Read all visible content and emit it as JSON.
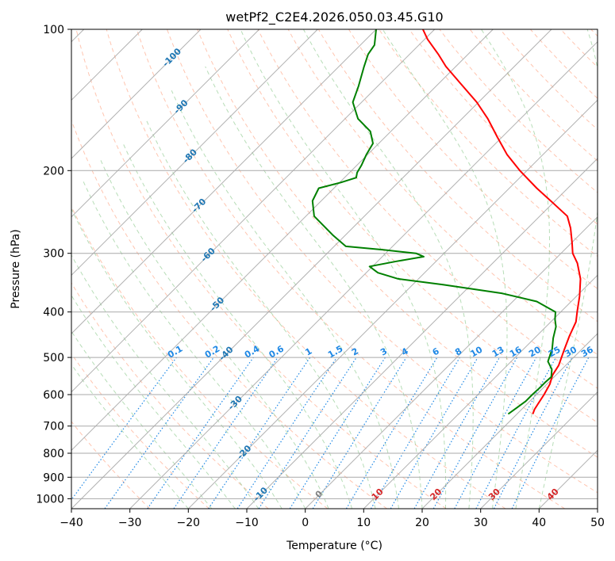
{
  "chart_data": {
    "type": "skew-t",
    "title": "wetPf2_C2E4.2026.050.03.45.G10",
    "xlabel": "Temperature (°C)",
    "ylabel": "Pressure (hPa)",
    "xlim": [
      -40,
      50
    ],
    "ylim_hpa": [
      1050,
      100
    ],
    "x_ticks": [
      -40,
      -30,
      -20,
      -10,
      0,
      10,
      20,
      30,
      40,
      50
    ],
    "x_tick_labels": [
      "−40",
      "−30",
      "−20",
      "−10",
      "0",
      "10",
      "20",
      "30",
      "40",
      "50"
    ],
    "p_ticks": [
      100,
      200,
      300,
      400,
      500,
      600,
      700,
      800,
      900,
      1000
    ],
    "p_tick_labels": [
      "100",
      "200",
      "300",
      "400",
      "500",
      "600",
      "700",
      "800",
      "900",
      "1000"
    ],
    "isotherm_labels": [
      {
        "t": -100,
        "text": "-100"
      },
      {
        "t": -90,
        "text": "-90"
      },
      {
        "t": -80,
        "text": "-80"
      },
      {
        "t": -70,
        "text": "-70"
      },
      {
        "t": -60,
        "text": "-60"
      },
      {
        "t": -50,
        "text": "-50"
      },
      {
        "t": -40,
        "text": "-40"
      },
      {
        "t": -30,
        "text": "-30"
      },
      {
        "t": -20,
        "text": "-20"
      },
      {
        "t": -10,
        "text": "-10"
      },
      {
        "t": 0,
        "text": "0"
      },
      {
        "t": 10,
        "text": "10"
      },
      {
        "t": 20,
        "text": "20"
      },
      {
        "t": 30,
        "text": "30"
      },
      {
        "t": 40,
        "text": "40"
      }
    ],
    "mixing_ratio_labels": [
      "0.1",
      "0.2",
      "0.4",
      "0.6",
      "1",
      "1.5",
      "2",
      "3",
      "4",
      "6",
      "8",
      "10",
      "13",
      "16",
      "20",
      "25",
      "30",
      "36"
    ],
    "grid": true,
    "colors": {
      "temperature": "#ff0000",
      "dewpoint": "#008000",
      "isotherm_label_cold": "#1f77b4",
      "isotherm_label_zero": "#808080",
      "isotherm_label_warm": "#d62728",
      "mixing_ratio": "#1e88e5",
      "dry_adiabat": "#ff7f50",
      "moist_adiabat": "#5fb35f",
      "grid": "#a9a9a9",
      "frame": "#000000"
    },
    "series": [
      {
        "name": "",
        "kind": "temperature",
        "points": [
          {
            "p": 660,
            "t": 22.7
          },
          {
            "p": 645,
            "t": 22.2
          },
          {
            "p": 630,
            "t": 21.9
          },
          {
            "p": 600,
            "t": 21.3
          },
          {
            "p": 570,
            "t": 20.5
          },
          {
            "p": 545,
            "t": 19.4
          },
          {
            "p": 520,
            "t": 18.8
          },
          {
            "p": 480,
            "t": 17.0
          },
          {
            "p": 450,
            "t": 15.6
          },
          {
            "p": 420,
            "t": 14.3
          },
          {
            "p": 400,
            "t": 12.8
          },
          {
            "p": 370,
            "t": 10.5
          },
          {
            "p": 340,
            "t": 7.7
          },
          {
            "p": 315,
            "t": 4.5
          },
          {
            "p": 300,
            "t": 2.0
          },
          {
            "p": 285,
            "t": 0.1
          },
          {
            "p": 265,
            "t": -2.7
          },
          {
            "p": 250,
            "t": -5.3
          },
          {
            "p": 235,
            "t": -9.8
          },
          {
            "p": 218,
            "t": -15.3
          },
          {
            "p": 200,
            "t": -21.2
          },
          {
            "p": 185,
            "t": -26.1
          },
          {
            "p": 170,
            "t": -30.7
          },
          {
            "p": 155,
            "t": -35.6
          },
          {
            "p": 143,
            "t": -40.3
          },
          {
            "p": 130,
            "t": -46.5
          },
          {
            "p": 120,
            "t": -51.7
          },
          {
            "p": 113,
            "t": -55.1
          },
          {
            "p": 105,
            "t": -59.5
          },
          {
            "p": 100,
            "t": -62.0
          }
        ]
      },
      {
        "name": "",
        "kind": "dewpoint",
        "points": [
          {
            "p": 660,
            "t": 18.5
          },
          {
            "p": 640,
            "t": 18.9
          },
          {
            "p": 620,
            "t": 19.3
          },
          {
            "p": 600,
            "t": 19.3
          },
          {
            "p": 580,
            "t": 19.4
          },
          {
            "p": 565,
            "t": 19.4
          },
          {
            "p": 550,
            "t": 19.5
          },
          {
            "p": 530,
            "t": 18.3
          },
          {
            "p": 510,
            "t": 16.3
          },
          {
            "p": 480,
            "t": 14.9
          },
          {
            "p": 455,
            "t": 13.2
          },
          {
            "p": 430,
            "t": 11.7
          },
          {
            "p": 415,
            "t": 10.3
          },
          {
            "p": 400,
            "t": 9.1
          },
          {
            "p": 380,
            "t": 4.1
          },
          {
            "p": 365,
            "t": -3.3
          },
          {
            "p": 350,
            "t": -14.8
          },
          {
            "p": 340,
            "t": -23.5
          },
          {
            "p": 330,
            "t": -28.0
          },
          {
            "p": 320,
            "t": -30.5
          },
          {
            "p": 312,
            "t": -26.8
          },
          {
            "p": 305,
            "t": -22.9
          },
          {
            "p": 300,
            "t": -24.8
          },
          {
            "p": 295,
            "t": -31.0
          },
          {
            "p": 290,
            "t": -38.0
          },
          {
            "p": 275,
            "t": -42.0
          },
          {
            "p": 250,
            "t": -48.6
          },
          {
            "p": 232,
            "t": -51.5
          },
          {
            "p": 218,
            "t": -52.6
          },
          {
            "p": 212,
            "t": -49.8
          },
          {
            "p": 207,
            "t": -48.0
          },
          {
            "p": 202,
            "t": -48.7
          },
          {
            "p": 195,
            "t": -49.2
          },
          {
            "p": 185,
            "t": -50.2
          },
          {
            "p": 175,
            "t": -51.0
          },
          {
            "p": 165,
            "t": -53.5
          },
          {
            "p": 155,
            "t": -57.8
          },
          {
            "p": 143,
            "t": -61.5
          },
          {
            "p": 132,
            "t": -63.3
          },
          {
            "p": 120,
            "t": -65.7
          },
          {
            "p": 113,
            "t": -67.1
          },
          {
            "p": 108,
            "t": -67.6
          },
          {
            "p": 100,
            "t": -70.0
          }
        ]
      }
    ]
  }
}
